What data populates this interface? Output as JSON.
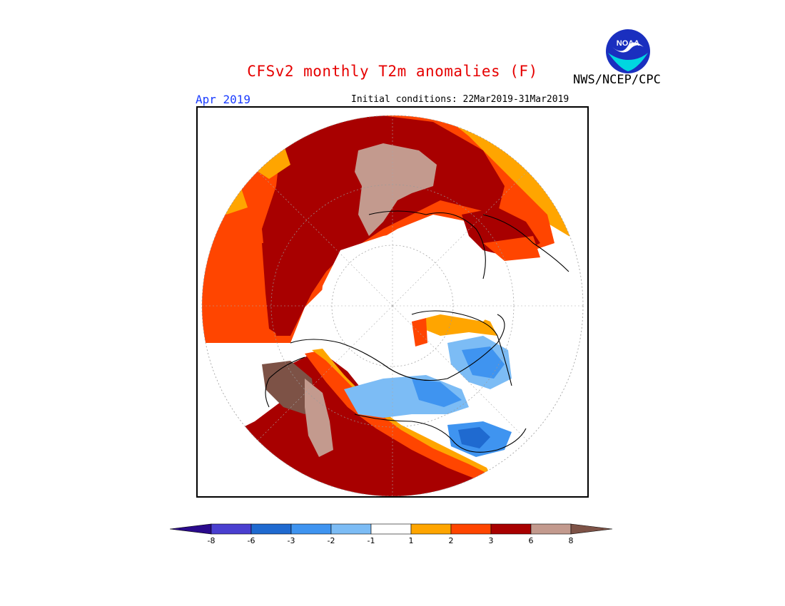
{
  "header": {
    "title": "CFSv2 monthly T2m anomalies (F)",
    "agency": "NWS/NCEP/CPC",
    "logo_text": "NOAA",
    "month": "Apr 2019",
    "initial_conditions": "Initial conditions: 22Mar2019-31Mar2019"
  },
  "legend": {
    "tick_labels": [
      "-8",
      "-6",
      "-3",
      "-2",
      "-1",
      "1",
      "2",
      "3",
      "6",
      "8"
    ],
    "colors": [
      "#2a0a8c",
      "#4a3fd0",
      "#1f6ad0",
      "#3f94f0",
      "#7cbcf5",
      "#ffffff",
      "#ffa500",
      "#ff4500",
      "#a80000",
      "#c39a8e",
      "#7d5246"
    ],
    "bin_labels": [
      "< -8",
      "-8 to -6",
      "-6 to -3",
      "-3 to -2",
      "-2 to -1",
      "-1 to 1",
      "1 to 2",
      "2 to 3",
      "3 to 6",
      "6 to 8",
      "> 8"
    ]
  },
  "map": {
    "projection": "north polar stereographic",
    "colors": {
      "orange": "#ffa500",
      "red_orange": "#ff4500",
      "dark_red": "#a80000",
      "pink_brown": "#c39a8e",
      "brown": "#7d5246",
      "light_blue": "#7cbcf5",
      "mid_blue": "#3f94f0",
      "blue": "#1f6ad0"
    }
  }
}
